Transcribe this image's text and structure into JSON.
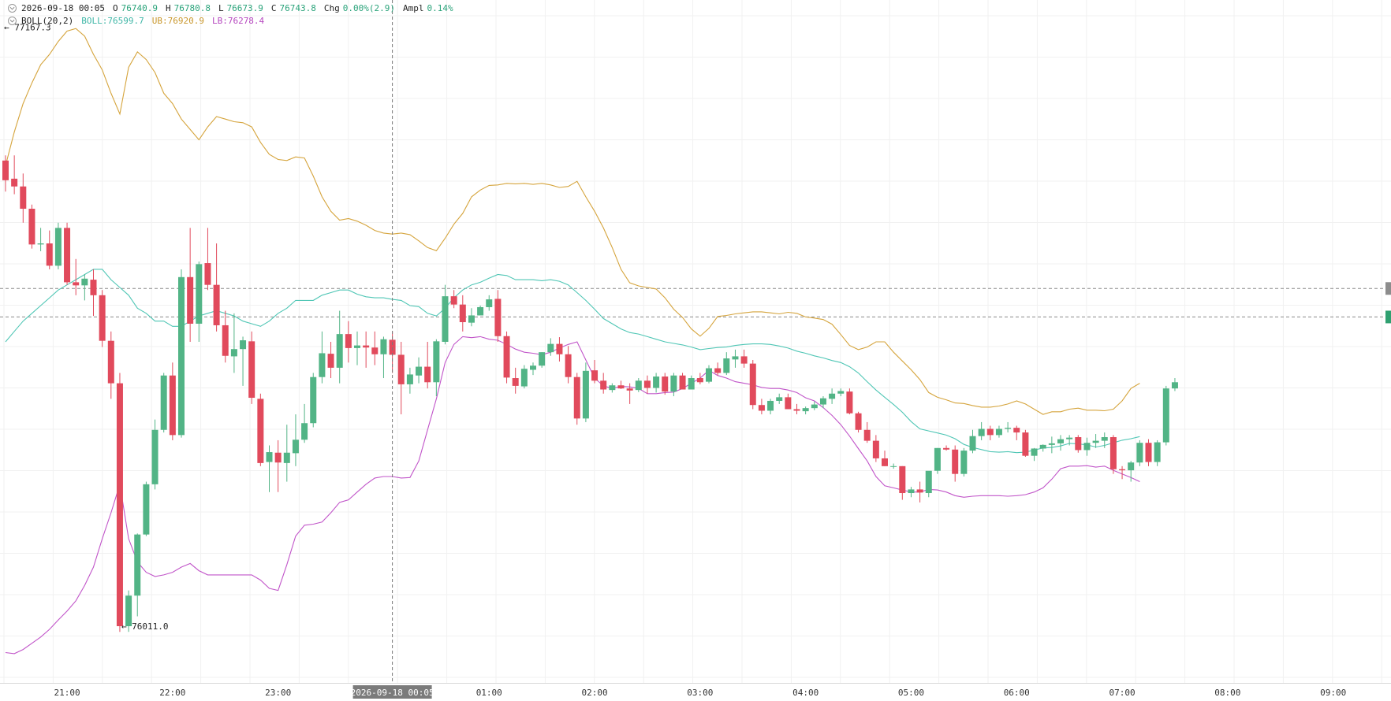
{
  "legend": {
    "datetime": "2026-09-18 00:05",
    "o_label": "O",
    "o_value": "76740.9",
    "h_label": "H",
    "h_value": "76780.8",
    "l_label": "L",
    "l_value": "76673.9",
    "c_label": "C",
    "c_value": "76743.8",
    "chg_label": "Chg",
    "chg_value": "0.00%(2.9)",
    "ampl_label": "Ampl",
    "ampl_value": "0.14%",
    "boll_label": "BOLL(20,2)",
    "boll_value": "BOLL:76599.7",
    "ub_value": "UB:76920.9",
    "lb_value": "LB:76278.4"
  },
  "markers": {
    "high": "← 77167.3",
    "low": "← 76011.0"
  },
  "crosshair_label": "2026-09-18 00:05",
  "colors": {
    "up": "#52b486",
    "down": "#e14a5c",
    "boll": "#4fc6b5",
    "ub": "#d5a43c",
    "lb": "#c155c9",
    "value_green": "#2aa37a"
  },
  "chart_data": {
    "type": "candlestick",
    "interval": "5m",
    "x_start": "20:25",
    "x_end": "09:05",
    "x_ticks": [
      "21:00",
      "22:00",
      "23:00",
      "00:00",
      "01:00",
      "02:00",
      "03:00",
      "04:00",
      "05:00",
      "06:00",
      "07:00",
      "08:00",
      "09:00"
    ],
    "y_range": [
      75900,
      77220
    ],
    "grid": true,
    "candles": [
      [
        76910,
        76920,
        76850,
        76872
      ],
      [
        76875,
        76920,
        76845,
        76860
      ],
      [
        76860,
        76885,
        76790,
        76817
      ],
      [
        76817,
        76825,
        76740,
        76748
      ],
      [
        76748,
        76780,
        76735,
        76750
      ],
      [
        76750,
        76775,
        76700,
        76707
      ],
      [
        76707,
        76790,
        76700,
        76780
      ],
      [
        76780,
        76790,
        76670,
        76675
      ],
      [
        76675,
        76720,
        76650,
        76669
      ],
      [
        76669,
        76690,
        76640,
        76682
      ],
      [
        76680,
        76700,
        76610,
        76650
      ],
      [
        76650,
        76660,
        76550,
        76562
      ],
      [
        76562,
        76580,
        76450,
        76480
      ],
      [
        76480,
        76500,
        76000,
        76011
      ],
      [
        76011,
        76080,
        76000,
        76070
      ],
      [
        76070,
        76190,
        76030,
        76188
      ],
      [
        76188,
        76290,
        76185,
        76285
      ],
      [
        76285,
        76410,
        76275,
        76390
      ],
      [
        76390,
        76500,
        76385,
        76495
      ],
      [
        76495,
        76520,
        76370,
        76380
      ],
      [
        76380,
        76700,
        76375,
        76685
      ],
      [
        76685,
        76780,
        76560,
        76595
      ],
      [
        76595,
        76715,
        76560,
        76710
      ],
      [
        76712,
        76780,
        76660,
        76670
      ],
      [
        76670,
        76750,
        76580,
        76592
      ],
      [
        76592,
        76620,
        76520,
        76533
      ],
      [
        76532,
        76615,
        76500,
        76546
      ],
      [
        76546,
        76570,
        76475,
        76563
      ],
      [
        76561,
        76580,
        76440,
        76452
      ],
      [
        76450,
        76460,
        76320,
        76326
      ],
      [
        76328,
        76360,
        76270,
        76347
      ],
      [
        76346,
        76370,
        76270,
        76327
      ],
      [
        76326,
        76400,
        76290,
        76346
      ],
      [
        76345,
        76420,
        76320,
        76371
      ],
      [
        76371,
        76440,
        76365,
        76403
      ],
      [
        76403,
        76500,
        76395,
        76492
      ],
      [
        76492,
        76580,
        76480,
        76538
      ],
      [
        76537,
        76560,
        76490,
        76510
      ],
      [
        76510,
        76620,
        76480,
        76575
      ],
      [
        76575,
        76600,
        76520,
        76548
      ],
      [
        76548,
        76580,
        76515,
        76553
      ],
      [
        76553,
        76580,
        76510,
        76549
      ],
      [
        76549,
        76580,
        76515,
        76536
      ],
      [
        76536,
        76570,
        76490,
        76565
      ],
      [
        76564,
        76580,
        76500,
        76535
      ],
      [
        76535,
        76560,
        76420,
        76478
      ],
      [
        76478,
        76510,
        76460,
        76497
      ],
      [
        76495,
        76530,
        76480,
        76512
      ],
      [
        76512,
        76560,
        76470,
        76482
      ],
      [
        76482,
        76565,
        76455,
        76561
      ],
      [
        76560,
        76670,
        76555,
        76648
      ],
      [
        76648,
        76660,
        76625,
        76632
      ],
      [
        76632,
        76650,
        76580,
        76598
      ],
      [
        76597,
        76625,
        76590,
        76611
      ],
      [
        76611,
        76630,
        76615,
        76627
      ],
      [
        76627,
        76650,
        76620,
        76642
      ],
      [
        76643,
        76660,
        76560,
        76571
      ],
      [
        76571,
        76580,
        76480,
        76491
      ],
      [
        76490,
        76510,
        76460,
        76475
      ],
      [
        76474,
        76515,
        76470,
        76508
      ],
      [
        76506,
        76520,
        76496,
        76514
      ],
      [
        76514,
        76540,
        76510,
        76540
      ],
      [
        76540,
        76567,
        76533,
        76556
      ],
      [
        76556,
        76569,
        76522,
        76536
      ],
      [
        76536,
        76552,
        76480,
        76492
      ],
      [
        76492,
        76500,
        76400,
        76412
      ],
      [
        76412,
        76520,
        76405,
        76504
      ],
      [
        76505,
        76525,
        76480,
        76485
      ],
      [
        76485,
        76500,
        76460,
        76468
      ],
      [
        76467,
        76480,
        76462,
        76476
      ],
      [
        76476,
        76485,
        76469,
        76470
      ],
      [
        76470,
        76480,
        76440,
        76466
      ],
      [
        76467,
        76490,
        76463,
        76485
      ],
      [
        76485,
        76495,
        76460,
        76471
      ],
      [
        76471,
        76500,
        76462,
        76493
      ],
      [
        76493,
        76500,
        76458,
        76464
      ],
      [
        76464,
        76500,
        76455,
        76495
      ],
      [
        76495,
        76500,
        76468,
        76468
      ],
      [
        76468,
        76495,
        76470,
        76490
      ],
      [
        76490,
        76500,
        76478,
        76482
      ],
      [
        76483,
        76515,
        76480,
        76509
      ],
      [
        76509,
        76520,
        76495,
        76500
      ],
      [
        76500,
        76540,
        76496,
        76528
      ],
      [
        76526,
        76545,
        76510,
        76532
      ],
      [
        76532,
        76545,
        76510,
        76518
      ],
      [
        76518,
        76525,
        76430,
        76438
      ],
      [
        76438,
        76450,
        76420,
        76427
      ],
      [
        76427,
        76450,
        76420,
        76446
      ],
      [
        76446,
        76460,
        76440,
        76453
      ],
      [
        76453,
        76460,
        76430,
        76430
      ],
      [
        76430,
        76440,
        76420,
        76427
      ],
      [
        76426,
        76435,
        76420,
        76432
      ],
      [
        76432,
        76445,
        76428,
        76439
      ],
      [
        76439,
        76455,
        76432,
        76451
      ],
      [
        76450,
        76470,
        76440,
        76460
      ],
      [
        76460,
        76470,
        76455,
        76465
      ],
      [
        76464,
        76470,
        76420,
        76422
      ],
      [
        76422,
        76425,
        76385,
        76390
      ],
      [
        76390,
        76405,
        76365,
        76369
      ],
      [
        76369,
        76380,
        76328,
        76335
      ],
      [
        76335,
        76350,
        76320,
        76320
      ],
      [
        76320,
        76325,
        76315,
        76320
      ],
      [
        76320,
        76320,
        76255,
        76268
      ],
      [
        76268,
        76280,
        76260,
        76275
      ],
      [
        76275,
        76290,
        76250,
        76269
      ],
      [
        76268,
        76300,
        76260,
        76311
      ],
      [
        76311,
        76355,
        76305,
        76355
      ],
      [
        76355,
        76360,
        76350,
        76352
      ],
      [
        76352,
        76360,
        76290,
        76305
      ],
      [
        76305,
        76355,
        76300,
        76350
      ],
      [
        76350,
        76390,
        76345,
        76378
      ],
      [
        76378,
        76405,
        76370,
        76392
      ],
      [
        76392,
        76398,
        76370,
        76380
      ],
      [
        76380,
        76398,
        76375,
        76392
      ],
      [
        76392,
        76405,
        76385,
        76394
      ],
      [
        76394,
        76398,
        76370,
        76385
      ],
      [
        76385,
        76390,
        76338,
        76340
      ],
      [
        76340,
        76355,
        76330,
        76354
      ],
      [
        76354,
        76362,
        76348,
        76361
      ],
      [
        76361,
        76377,
        76345,
        76364
      ],
      [
        76364,
        76380,
        76350,
        76372
      ],
      [
        76372,
        76380,
        76360,
        76375
      ],
      [
        76376,
        76380,
        76346,
        76351
      ],
      [
        76351,
        76375,
        76340,
        76365
      ],
      [
        76365,
        76382,
        76355,
        76369
      ],
      [
        76369,
        76385,
        76355,
        76376
      ],
      [
        76376,
        76380,
        76305,
        76314
      ],
      [
        76314,
        76320,
        76295,
        76312
      ],
      [
        76312,
        76330,
        76290,
        76327
      ],
      [
        76327,
        76370,
        76320,
        76365
      ],
      [
        76365,
        76372,
        76320,
        76328
      ],
      [
        76328,
        76370,
        76320,
        76366
      ],
      [
        76366,
        76475,
        76360,
        76470
      ],
      [
        76470,
        76490,
        76465,
        76482
      ]
    ],
    "series": [
      {
        "name": "BOLL",
        "values": [
          76560,
          76580,
          76600,
          76615,
          76630,
          76645,
          76660,
          76670,
          76680,
          76690,
          76700,
          76700,
          76680,
          76665,
          76650,
          76625,
          76615,
          76600,
          76600,
          76590,
          76590,
          76600,
          76610,
          76615,
          76620,
          76615,
          76610,
          76600,
          76595,
          76590,
          76600,
          76615,
          76625,
          76640,
          76640,
          76640,
          76650,
          76655,
          76660,
          76660,
          76652,
          76647,
          76645,
          76645,
          76642,
          76640,
          76630,
          76628,
          76615,
          76610,
          76625,
          76645,
          76660,
          76670,
          76675,
          76683,
          76690,
          76688,
          76680,
          76680,
          76680,
          76678,
          76680,
          76677,
          76670,
          76655,
          76640,
          76623,
          76605,
          76595,
          76585,
          76578,
          76575,
          76570,
          76565,
          76560,
          76557,
          76554,
          76550,
          76545,
          76547,
          76549,
          76550,
          76553,
          76555,
          76556,
          76556,
          76555,
          76552,
          76548,
          76542,
          76538,
          76533,
          76529,
          76524,
          76520,
          76512,
          76500,
          76483,
          76467,
          76453,
          76439,
          76424,
          76406,
          76392,
          76388,
          76384,
          76380,
          76373,
          76362,
          76356,
          76352,
          76348,
          76347,
          76348,
          76346,
          76347,
          76351,
          76355,
          76356,
          76359,
          76364,
          76363,
          76361,
          76357,
          76360,
          76365,
          76370,
          76373,
          76377
        ]
      },
      {
        "name": "UB",
        "values": [
          76900,
          76965,
          77020,
          77060,
          77095,
          77115,
          77140,
          77160,
          77165,
          77150,
          77115,
          77085,
          77040,
          77000,
          77090,
          77120,
          77105,
          77080,
          77040,
          77020,
          76990,
          76970,
          76950,
          76975,
          76995,
          76990,
          76985,
          76983,
          76975,
          76945,
          76922,
          76912,
          76910,
          76917,
          76915,
          76880,
          76840,
          76812,
          76795,
          76798,
          76793,
          76785,
          76775,
          76770,
          76768,
          76770,
          76767,
          76755,
          76742,
          76736,
          76760,
          76787,
          76808,
          76840,
          76853,
          76862,
          76863,
          76866,
          76865,
          76866,
          76864,
          76866,
          76863,
          76858,
          76860,
          76870,
          76840,
          76812,
          76780,
          76742,
          76700,
          76674,
          76668,
          76665,
          76662,
          76645,
          76623,
          76607,
          76585,
          76571,
          76586,
          76609,
          76611,
          76614,
          76616,
          76618,
          76618,
          76616,
          76614,
          76617,
          76615,
          76608,
          76606,
          76603,
          76594,
          76574,
          76553,
          76545,
          76550,
          76560,
          76560,
          76540,
          76523,
          76506,
          76487,
          76462,
          76453,
          76448,
          76442,
          76441,
          76437,
          76434,
          76434,
          76436,
          76440,
          76446,
          76440,
          76430,
          76420,
          76425,
          76425,
          76430,
          76432,
          76428,
          76428,
          76427,
          76430,
          76446,
          76470,
          76480
        ]
      },
      {
        "name": "LB",
        "values": [
          75960,
          75958,
          75966,
          75978,
          75990,
          76005,
          76023,
          76040,
          76060,
          76090,
          76125,
          76180,
          76230,
          76285,
          76180,
          76135,
          76115,
          76107,
          76110,
          76115,
          76125,
          76132,
          76118,
          76110,
          76110,
          76110,
          76110,
          76110,
          76110,
          76100,
          76084,
          76080,
          76130,
          76185,
          76206,
          76208,
          76212,
          76230,
          76250,
          76255,
          76270,
          76285,
          76297,
          76300,
          76300,
          76297,
          76298,
          76330,
          76390,
          76450,
          76520,
          76555,
          76570,
          76568,
          76570,
          76565,
          76563,
          76555,
          76546,
          76540,
          76538,
          76535,
          76540,
          76548,
          76555,
          76560,
          76525,
          76490,
          76475,
          76470,
          76474,
          76473,
          76470,
          76460,
          76460,
          76462,
          76463,
          76470,
          76480,
          76490,
          76505,
          76495,
          76490,
          76483,
          76480,
          76477,
          76472,
          76470,
          76470,
          76467,
          76462,
          76452,
          76446,
          76433,
          76418,
          76400,
          76378,
          76354,
          76330,
          76300,
          76282,
          76278,
          76274,
          76270,
          76270,
          76275,
          76274,
          76270,
          76263,
          76260,
          76262,
          76263,
          76263,
          76263,
          76262,
          76263,
          76265,
          76270,
          76278,
          76295,
          76315,
          76320,
          76320,
          76321,
          76318,
          76320,
          76312,
          76305,
          76298,
          76290
        ]
      }
    ],
    "markers": {
      "high": 77167.3,
      "low": 76011.0
    },
    "h_lines": [
      76663,
      76608
    ],
    "crosshair_x": "00:05"
  }
}
